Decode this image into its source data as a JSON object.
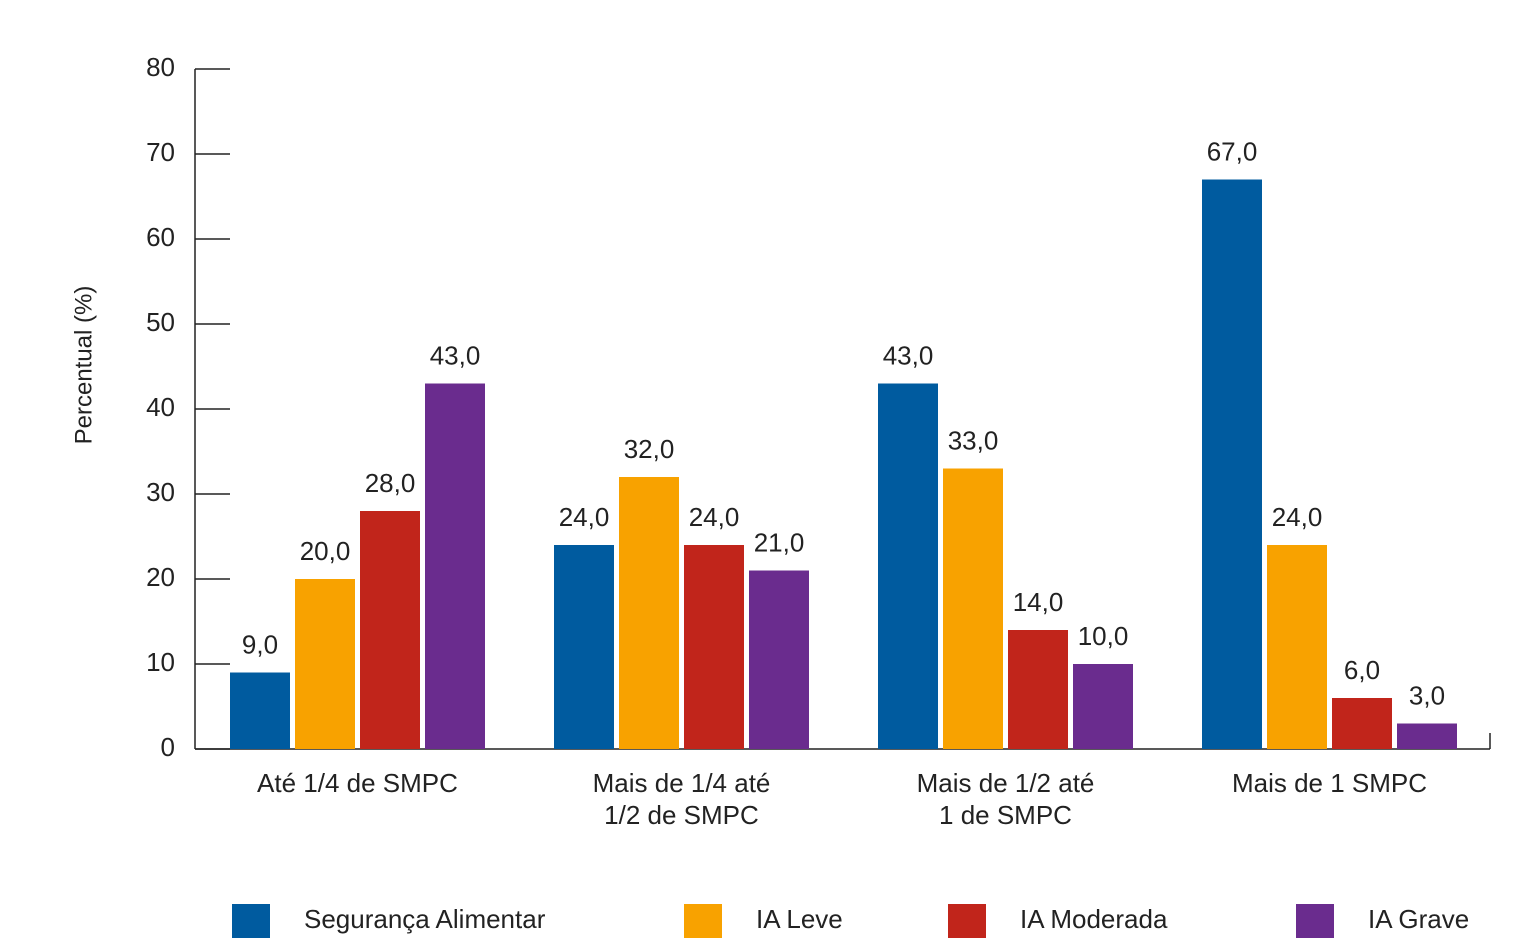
{
  "chart_data": {
    "type": "bar",
    "y_label": "Percentual (%)",
    "categories": [
      "Até 1/4 de SMPC",
      "Mais de 1/4 até\n1/2 de SMPC",
      "Mais de 1/2 até\n1 de SMPC",
      "Mais de 1 SMPC"
    ],
    "series": [
      {
        "name": "Segurança Alimentar",
        "color": "#005b9f",
        "values": [
          9,
          24,
          43,
          67
        ],
        "value_labels": [
          "9,0",
          "24,0",
          "43,0",
          "67,0"
        ]
      },
      {
        "name": "IA Leve",
        "color": "#f8a200",
        "values": [
          20,
          32,
          33,
          24
        ],
        "value_labels": [
          "20,0",
          "32,0",
          "33,0",
          "24,0"
        ]
      },
      {
        "name": "IA Moderada",
        "color": "#c1251b",
        "values": [
          28,
          24,
          14,
          6
        ],
        "value_labels": [
          "28,0",
          "24,0",
          "14,0",
          "6,0"
        ]
      },
      {
        "name": "IA Grave",
        "color": "#6a2c8e",
        "values": [
          43,
          21,
          10,
          3
        ],
        "value_labels": [
          "43,0",
          "21,0",
          "10,0",
          "3,0"
        ]
      }
    ],
    "ylim": [
      0,
      80
    ],
    "yticks": [
      0,
      10,
      20,
      30,
      40,
      50,
      60,
      70,
      80
    ],
    "legend": "bottom"
  }
}
